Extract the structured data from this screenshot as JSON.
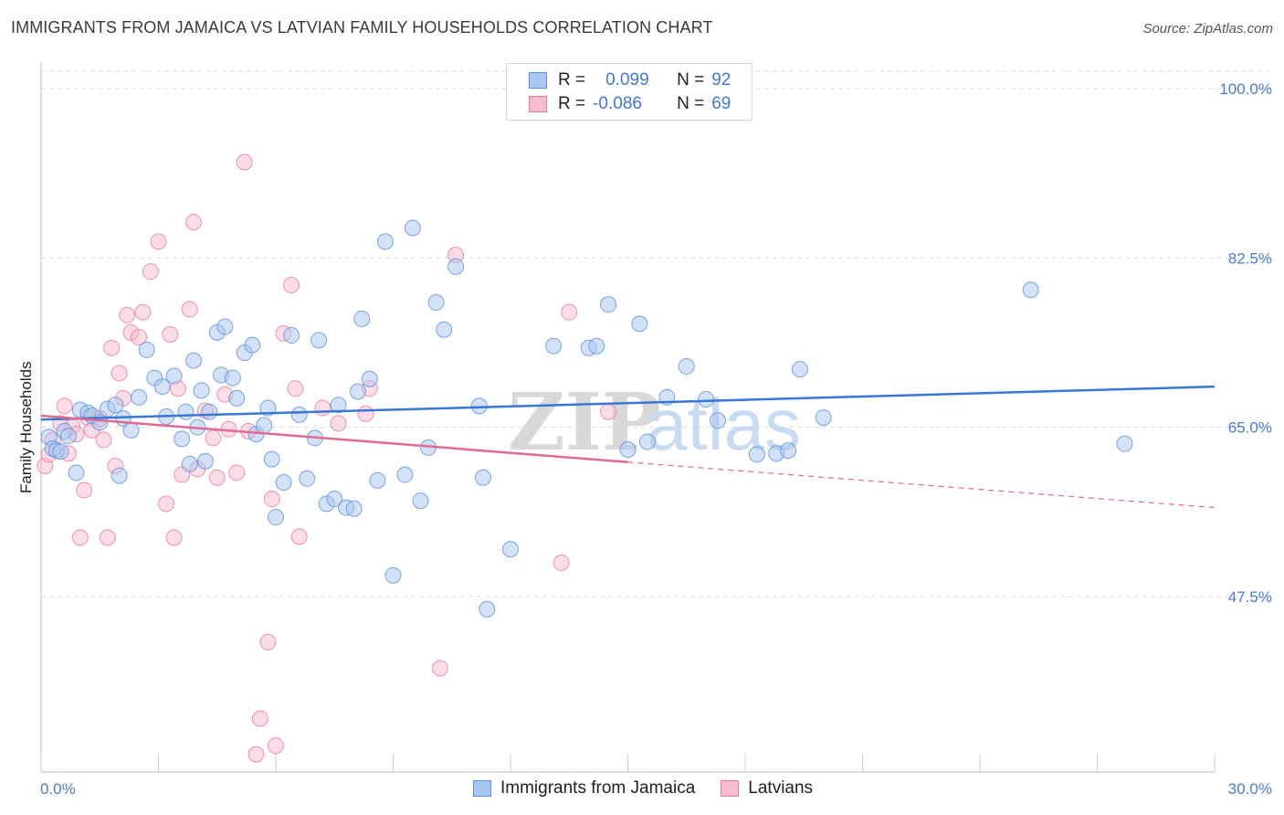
{
  "title": "IMMIGRANTS FROM JAMAICA VS LATVIAN FAMILY HOUSEHOLDS CORRELATION CHART",
  "source": "Source: ZipAtlas.com",
  "watermark": {
    "zip": "ZIP",
    "atlas": "atlas"
  },
  "legend": {
    "r_label": "R =",
    "n_label": "N =",
    "rows": [
      {
        "r": "0.099",
        "n": "92",
        "fill": "#a9c6f0",
        "stroke": "#5b8fe0"
      },
      {
        "r": "-0.086",
        "n": "69",
        "fill": "#f8bccd",
        "stroke": "#e8799c"
      }
    ]
  },
  "bottom_legend": [
    {
      "label": "Immigrants from Jamaica",
      "fill": "#a9c6f0",
      "stroke": "#5b8fe0"
    },
    {
      "label": "Latvians",
      "fill": "#f8bccd",
      "stroke": "#e8799c"
    }
  ],
  "chart_data": {
    "type": "scatter",
    "xlabel": "",
    "ylabel": "Family Households",
    "xlim": [
      0,
      30
    ],
    "ylim": [
      30,
      100
    ],
    "x_tick_labels": [
      "0.0%",
      "30.0%"
    ],
    "y_ticks": [
      47.5,
      65.0,
      82.5,
      100.0
    ],
    "y_tick_labels": [
      "47.5%",
      "65.0%",
      "82.5%",
      "100.0%"
    ],
    "grid": true,
    "legend_position": "top-center",
    "series": [
      {
        "name": "Immigrants from Jamaica",
        "color": "#5b8fe0",
        "fill": "#a9c6f0",
        "trend": {
          "x": [
            0,
            30
          ],
          "y": [
            65.8,
            69.2
          ]
        },
        "points": [
          [
            0.2,
            64
          ],
          [
            0.3,
            62.8
          ],
          [
            0.4,
            62.6
          ],
          [
            0.5,
            62.5
          ],
          [
            0.6,
            64.6
          ],
          [
            0.7,
            64.1
          ],
          [
            0.9,
            60.3
          ],
          [
            1.0,
            66.8
          ],
          [
            1.2,
            66.5
          ],
          [
            1.3,
            66.2
          ],
          [
            1.5,
            65.5
          ],
          [
            1.7,
            66.9
          ],
          [
            1.9,
            67.3
          ],
          [
            2.0,
            60.0
          ],
          [
            2.1,
            65.9
          ],
          [
            2.3,
            64.7
          ],
          [
            2.5,
            68.1
          ],
          [
            2.7,
            73.0
          ],
          [
            2.9,
            70.1
          ],
          [
            3.1,
            69.2
          ],
          [
            3.2,
            66.1
          ],
          [
            3.4,
            70.3
          ],
          [
            3.6,
            63.8
          ],
          [
            3.7,
            66.6
          ],
          [
            3.8,
            61.2
          ],
          [
            3.9,
            71.9
          ],
          [
            4.0,
            65.0
          ],
          [
            4.1,
            68.8
          ],
          [
            4.2,
            61.5
          ],
          [
            4.3,
            66.6
          ],
          [
            4.5,
            74.8
          ],
          [
            4.6,
            70.4
          ],
          [
            4.7,
            75.4
          ],
          [
            4.9,
            70.1
          ],
          [
            5.0,
            68.0
          ],
          [
            5.2,
            72.7
          ],
          [
            5.4,
            73.5
          ],
          [
            5.5,
            64.3
          ],
          [
            5.7,
            65.2
          ],
          [
            5.8,
            67.0
          ],
          [
            5.9,
            61.7
          ],
          [
            6.0,
            55.7
          ],
          [
            6.2,
            59.3
          ],
          [
            6.4,
            74.5
          ],
          [
            6.6,
            66.3
          ],
          [
            6.8,
            59.7
          ],
          [
            7.0,
            63.9
          ],
          [
            7.1,
            74.0
          ],
          [
            7.3,
            57.1
          ],
          [
            7.5,
            57.6
          ],
          [
            7.6,
            67.3
          ],
          [
            7.8,
            56.7
          ],
          [
            8.0,
            56.6
          ],
          [
            8.1,
            68.7
          ],
          [
            8.2,
            76.2
          ],
          [
            8.4,
            70.0
          ],
          [
            8.6,
            59.5
          ],
          [
            8.8,
            84.2
          ],
          [
            9.0,
            49.7
          ],
          [
            9.3,
            60.1
          ],
          [
            9.5,
            85.6
          ],
          [
            9.7,
            57.4
          ],
          [
            9.9,
            62.9
          ],
          [
            10.1,
            77.9
          ],
          [
            10.3,
            75.1
          ],
          [
            10.6,
            81.6
          ],
          [
            11.2,
            67.2
          ],
          [
            11.3,
            59.8
          ],
          [
            11.4,
            46.2
          ],
          [
            12.0,
            52.4
          ],
          [
            13.1,
            73.4
          ],
          [
            14.0,
            73.2
          ],
          [
            14.2,
            73.4
          ],
          [
            14.5,
            77.7
          ],
          [
            15.0,
            62.7
          ],
          [
            15.3,
            75.7
          ],
          [
            15.5,
            63.5
          ],
          [
            16.0,
            68.1
          ],
          [
            16.5,
            71.3
          ],
          [
            17.0,
            67.9
          ],
          [
            17.3,
            65.7
          ],
          [
            18.3,
            62.2
          ],
          [
            18.8,
            62.3
          ],
          [
            19.1,
            62.6
          ],
          [
            19.4,
            71.0
          ],
          [
            20.0,
            66.0
          ],
          [
            25.3,
            79.2
          ],
          [
            27.7,
            63.3
          ]
        ]
      },
      {
        "name": "Latvians",
        "color": "#e8799c",
        "fill": "#f8bccd",
        "trend": {
          "x": [
            0,
            15
          ],
          "y": [
            66.2,
            61.4
          ]
        },
        "trend_dashed": {
          "x": [
            15,
            30
          ],
          "y": [
            61.4,
            56.7
          ]
        },
        "points": [
          [
            0.1,
            61.0
          ],
          [
            0.2,
            62.2
          ],
          [
            0.3,
            63.7
          ],
          [
            0.5,
            65.4
          ],
          [
            0.6,
            67.2
          ],
          [
            0.7,
            62.3
          ],
          [
            0.8,
            65.1
          ],
          [
            0.9,
            64.3
          ],
          [
            1.0,
            53.6
          ],
          [
            1.1,
            58.5
          ],
          [
            1.2,
            66.0
          ],
          [
            1.3,
            64.7
          ],
          [
            1.5,
            65.9
          ],
          [
            1.6,
            63.7
          ],
          [
            1.7,
            53.6
          ],
          [
            1.8,
            73.2
          ],
          [
            1.9,
            61.0
          ],
          [
            2.0,
            70.6
          ],
          [
            2.1,
            68.0
          ],
          [
            2.2,
            76.6
          ],
          [
            2.3,
            74.8
          ],
          [
            2.5,
            74.3
          ],
          [
            2.6,
            76.9
          ],
          [
            2.8,
            81.1
          ],
          [
            3.0,
            84.2
          ],
          [
            3.2,
            57.1
          ],
          [
            3.3,
            74.6
          ],
          [
            3.4,
            53.6
          ],
          [
            3.5,
            69.0
          ],
          [
            3.6,
            60.1
          ],
          [
            3.8,
            77.2
          ],
          [
            3.9,
            86.2
          ],
          [
            4.0,
            60.7
          ],
          [
            4.2,
            66.7
          ],
          [
            4.4,
            63.9
          ],
          [
            4.5,
            59.8
          ],
          [
            4.7,
            68.4
          ],
          [
            4.8,
            64.8
          ],
          [
            5.0,
            60.3
          ],
          [
            5.2,
            92.4
          ],
          [
            5.3,
            64.6
          ],
          [
            5.5,
            31.2
          ],
          [
            5.6,
            34.9
          ],
          [
            5.8,
            42.8
          ],
          [
            5.9,
            57.6
          ],
          [
            6.0,
            32.1
          ],
          [
            6.2,
            74.7
          ],
          [
            6.4,
            79.7
          ],
          [
            6.5,
            69.0
          ],
          [
            6.6,
            53.7
          ],
          [
            7.2,
            67.0
          ],
          [
            7.6,
            65.4
          ],
          [
            8.3,
            66.4
          ],
          [
            8.4,
            69.0
          ],
          [
            10.2,
            40.1
          ],
          [
            10.6,
            82.8
          ],
          [
            13.3,
            51.0
          ],
          [
            13.5,
            76.9
          ],
          [
            14.5,
            66.6
          ]
        ]
      }
    ]
  }
}
